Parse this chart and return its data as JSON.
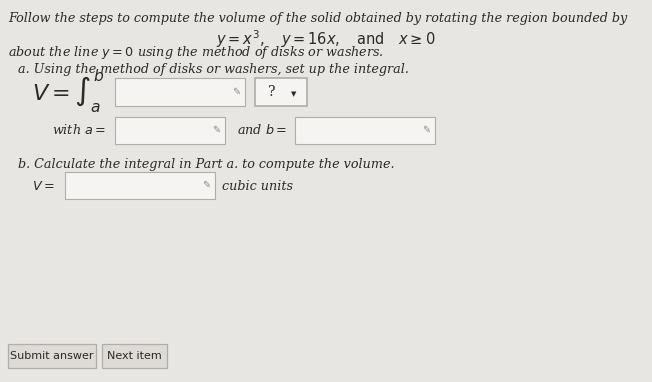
{
  "bg_color": "#e8e6e3",
  "title_line1": "Follow the steps to compute the volume of the solid obtained by rotating the region bounded by",
  "title_line2": "$y = x^3, \\quad y = 16x, \\quad \\text{and} \\quad x \\geq 0$",
  "line_about": "about the line $y = 0$ using the method of disks or washers.",
  "part_a_label": "a. Using the method of disks or washers, set up the integral.",
  "part_b_label": "b. Calculate the integral in Part a. to compute the volume.",
  "cubic_units": "cubic units",
  "btn1": "Submit answer",
  "btn2": "Next item",
  "box_color": "#f5f4f2",
  "box_edge_color": "#b0aca8",
  "btn_bg": "#dedad6",
  "btn_edge": "#b0aca8",
  "text_color": "#2a2a2a",
  "font_size_main": 9.2,
  "font_size_math": 10.5,
  "font_size_integral": 16
}
